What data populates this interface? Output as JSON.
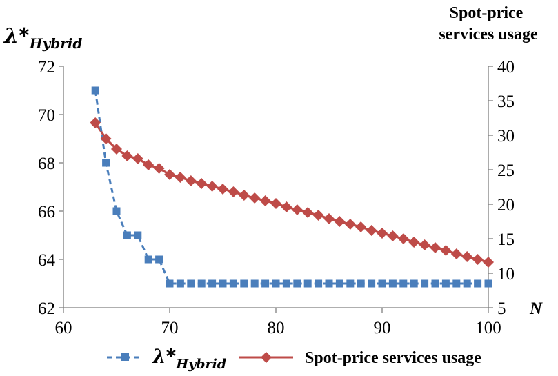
{
  "chart_data": {
    "type": "line",
    "xlabel": "N",
    "y_left_label": "λ*",
    "y_left_label_sub": "Hybrid",
    "y_right_label_lines": [
      "Spot-price",
      "services usage"
    ],
    "xlim": [
      60,
      100
    ],
    "ylim_left": [
      62,
      72
    ],
    "ylim_right": [
      5,
      40
    ],
    "x_ticks": [
      "60",
      "70",
      "80",
      "90",
      "100"
    ],
    "y_left_ticks": [
      "62",
      "64",
      "66",
      "68",
      "70",
      "72"
    ],
    "y_right_ticks": [
      "5",
      "10",
      "15",
      "20",
      "25",
      "30",
      "35",
      "40"
    ],
    "legend_placement": "bottom",
    "x": [
      63,
      64,
      65,
      66,
      67,
      68,
      69,
      70,
      71,
      72,
      73,
      74,
      75,
      76,
      77,
      78,
      79,
      80,
      81,
      82,
      83,
      84,
      85,
      86,
      87,
      88,
      89,
      90,
      91,
      92,
      93,
      94,
      95,
      96,
      97,
      98,
      99,
      100
    ],
    "series": [
      {
        "name": "λ*",
        "name_sub": "Hybrid",
        "axis": "left",
        "color": "#4a7ebb",
        "line_style": "dashed",
        "marker": "square",
        "values": [
          71,
          68,
          66,
          65,
          65,
          64,
          64,
          63,
          63,
          63,
          63,
          63,
          63,
          63,
          63,
          63,
          63,
          63,
          63,
          63,
          63,
          63,
          63,
          63,
          63,
          63,
          63,
          63,
          63,
          63,
          63,
          63,
          63,
          63,
          63,
          63,
          63,
          63
        ]
      },
      {
        "name": "Spot-price services usage",
        "axis": "right",
        "color": "#be4b48",
        "line_style": "solid",
        "marker": "diamond",
        "values": [
          31.8,
          29.5,
          28,
          27,
          26.6,
          25.7,
          25.2,
          24.3,
          23.9,
          23.4,
          23,
          22.6,
          22.2,
          21.8,
          21.3,
          20.9,
          20.5,
          20.1,
          19.6,
          19.2,
          18.8,
          18.4,
          17.9,
          17.5,
          17.1,
          16.7,
          16.2,
          15.8,
          15.4,
          15,
          14.5,
          14.1,
          13.7,
          13.3,
          12.8,
          12.4,
          12,
          11.6
        ]
      }
    ]
  }
}
